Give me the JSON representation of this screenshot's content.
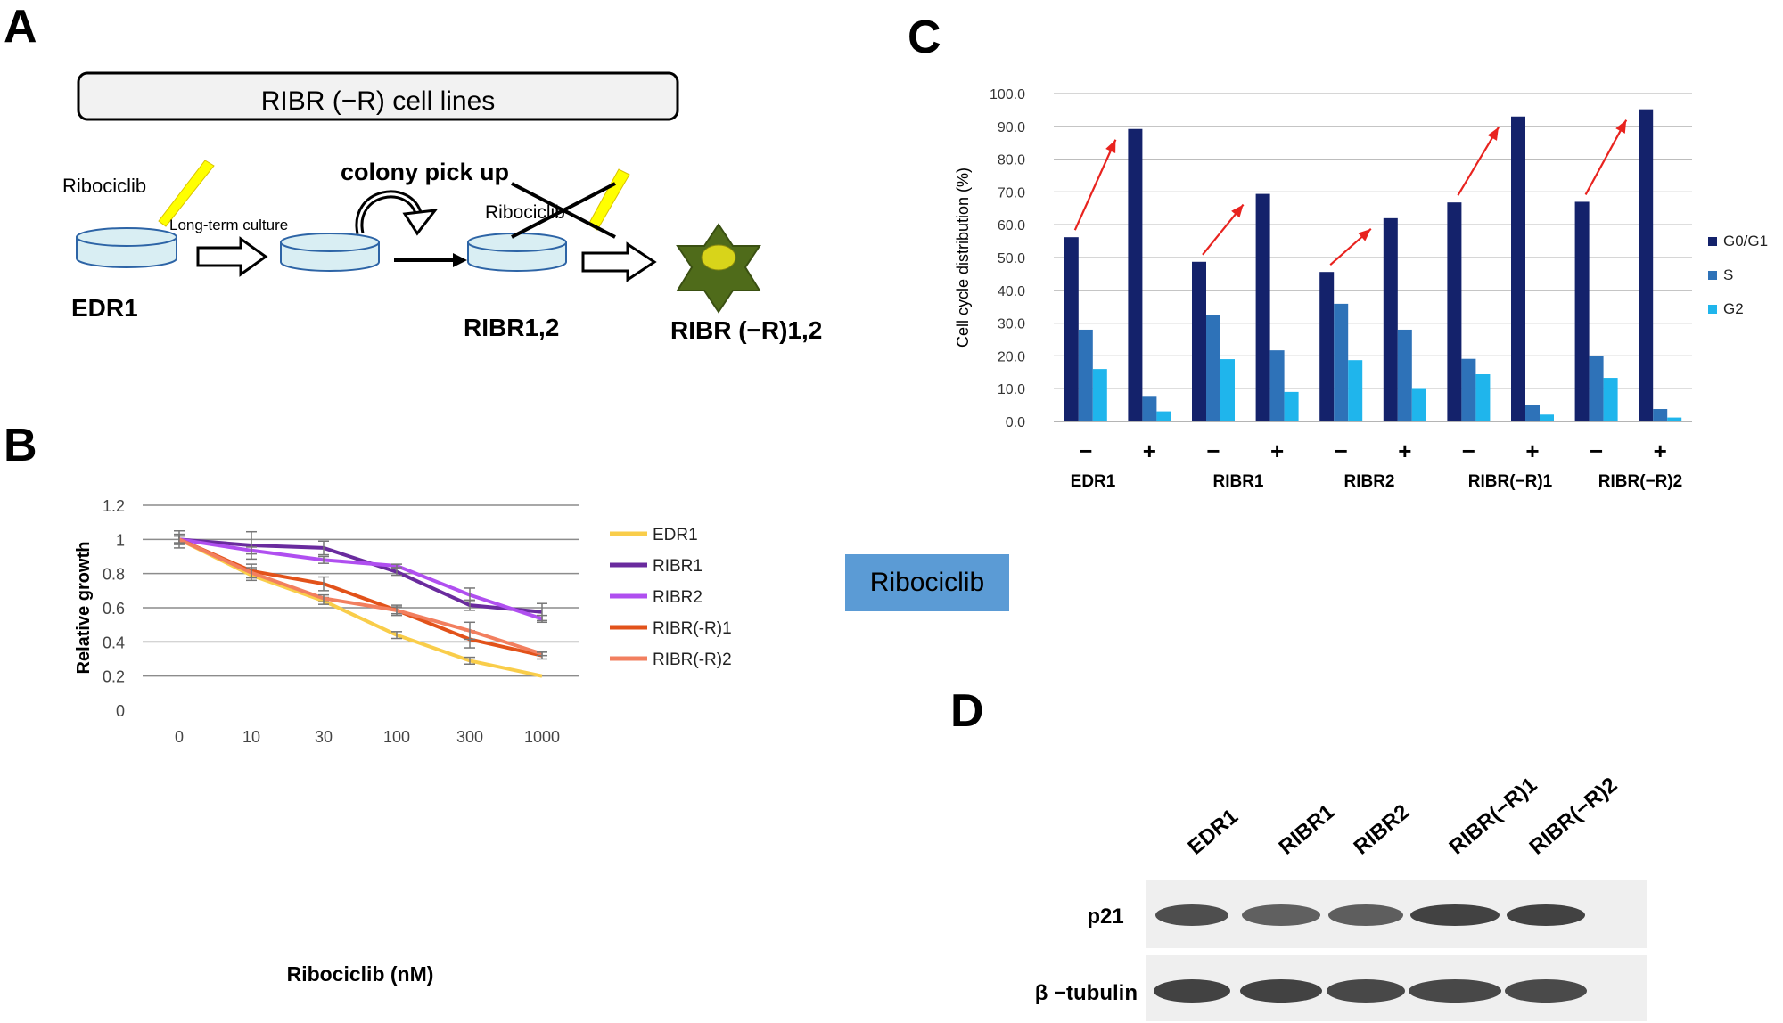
{
  "panels": {
    "a": "A",
    "b": "B",
    "c": "C",
    "d": "D"
  },
  "schematic": {
    "title": "RIBR (−R) cell lines",
    "drug_label": "Ribociclib",
    "culture_label": "Long-term culture",
    "colony_label": "colony pick up",
    "crossed_drug_label": "Ribociclib",
    "cell_lines": [
      "EDR1",
      "RIBR1,2",
      "RIBR (−R)1,2"
    ],
    "icons": [
      "dish-icon",
      "pipette-icon",
      "arrow-right-icon",
      "curved-arrow-icon",
      "cross-icon",
      "star-cell-icon"
    ],
    "colors": {
      "pipette": "#ffff00",
      "dish": "#d9eef3",
      "star": "#4f6b1a",
      "nucleus": "#d8d41a"
    }
  },
  "chart_data": [
    {
      "type": "line",
      "xlabel": "Ribociclib (nM)",
      "ylabel": "Relative growth",
      "categories": [
        "0",
        "10",
        "30",
        "100",
        "300",
        "1000"
      ],
      "ylim": [
        0,
        1.2
      ],
      "yticks": [
        "0",
        "0.2",
        "0.4",
        "0.6",
        "0.8",
        "1",
        "1.2"
      ],
      "grid": true,
      "legend_position": "right",
      "series": [
        {
          "name": "EDR1",
          "color": "#f9cd4a",
          "values": [
            1.0,
            0.79,
            0.64,
            0.44,
            0.29,
            0.2
          ],
          "errors": [
            0.02,
            0.03,
            0.02,
            0.02,
            0.02,
            0.0
          ]
        },
        {
          "name": "RIBR1",
          "color": "#6a2b9e",
          "values": [
            1.0,
            0.965,
            0.95,
            0.81,
            0.615,
            0.575
          ],
          "errors": [
            0.03,
            0.08,
            0.04,
            0.02,
            0.03,
            0.05
          ]
        },
        {
          "name": "RIBR2",
          "color": "#b04ff0",
          "values": [
            1.0,
            0.935,
            0.88,
            0.845,
            0.675,
            0.535
          ],
          "errors": [
            0.05,
            0.02,
            0.02,
            0.01,
            0.04,
            0.02
          ]
        },
        {
          "name": "RIBR(-R)1",
          "color": "#e2521a",
          "values": [
            1.0,
            0.815,
            0.74,
            0.585,
            0.415,
            0.32
          ],
          "errors": [
            0.02,
            0.04,
            0.04,
            0.02,
            0.05,
            0.02
          ]
        },
        {
          "name": "RIBR(-R)2",
          "color": "#f27f5f",
          "values": [
            1.0,
            0.805,
            0.655,
            0.585,
            0.465,
            0.33
          ],
          "errors": [
            0.02,
            0.03,
            0.02,
            0.03,
            0.05,
            0.01
          ]
        }
      ]
    },
    {
      "type": "bar",
      "ylabel": "Cell cycle distribution (%)",
      "ylim": [
        0,
        100
      ],
      "yticks": [
        "0.0",
        "10.0",
        "20.0",
        "30.0",
        "40.0",
        "50.0",
        "60.0",
        "70.0",
        "80.0",
        "90.0",
        "100.0"
      ],
      "grid": true,
      "legend_position": "right",
      "row_label": "Ribociclib",
      "treatments": [
        "−",
        "+",
        "−",
        "+",
        "−",
        "+",
        "−",
        "+",
        "−",
        "+"
      ],
      "groups": [
        "EDR1",
        "RIBR1",
        "RIBR2",
        "RIBR(−R)1",
        "RIBR(−R)2"
      ],
      "series": [
        {
          "name": "G0/G1",
          "color": "#14226b",
          "values": [
            56.2,
            89.2,
            48.7,
            69.4,
            45.6,
            62.0,
            66.8,
            93.0,
            67.0,
            95.2
          ]
        },
        {
          "name": "S",
          "color": "#2e72b8",
          "values": [
            28.0,
            7.8,
            32.4,
            21.7,
            35.9,
            28.0,
            19.1,
            5.1,
            20.0,
            3.8
          ]
        },
        {
          "name": "G2",
          "color": "#1fb5ec",
          "values": [
            16.0,
            3.1,
            19.0,
            9.0,
            18.7,
            10.2,
            14.4,
            2.1,
            13.3,
            1.2
          ]
        }
      ],
      "arrow_color": "#e8231f"
    }
  ],
  "blot": {
    "lanes": [
      "EDR1",
      "RIBR1",
      "RIBR2",
      "RIBR(−R)1",
      "RIBR(−R)2"
    ],
    "rows": [
      "p21",
      "β −tubulin"
    ],
    "p21_intensity": [
      0.85,
      0.7,
      0.72,
      0.95,
      0.95
    ],
    "tubulin_intensity": [
      0.95,
      0.95,
      0.9,
      0.9,
      0.88
    ]
  }
}
